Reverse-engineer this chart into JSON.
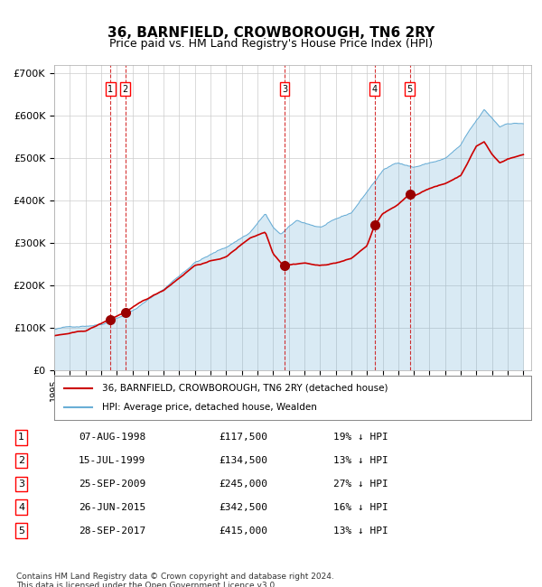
{
  "title": "36, BARNFIELD, CROWBOROUGH, TN6 2RY",
  "subtitle": "Price paid vs. HM Land Registry's House Price Index (HPI)",
  "footer": "Contains HM Land Registry data © Crown copyright and database right 2024.\nThis data is licensed under the Open Government Licence v3.0.",
  "legend_line1": "36, BARNFIELD, CROWBOROUGH, TN6 2RY (detached house)",
  "legend_line2": "HPI: Average price, detached house, Wealden",
  "hpi_color": "#6aaed6",
  "hpi_fill_color": "#ddeeff",
  "price_color": "#cc0000",
  "marker_color": "#990000",
  "vline_color": "#cc0000",
  "background_color": "#ffffff",
  "grid_color": "#cccccc",
  "transactions": [
    {
      "num": 1,
      "date": "07-AUG-1998",
      "year": 1998.6,
      "price": 117500,
      "pct": "19%",
      "dir": "↓"
    },
    {
      "num": 2,
      "date": "15-JUL-1999",
      "year": 1999.54,
      "price": 134500,
      "pct": "13%",
      "dir": "↓"
    },
    {
      "num": 3,
      "date": "25-SEP-2009",
      "year": 2009.73,
      "price": 245000,
      "pct": "27%",
      "dir": "↓"
    },
    {
      "num": 4,
      "date": "26-JUN-2015",
      "year": 2015.49,
      "price": 342500,
      "pct": "16%",
      "dir": "↓"
    },
    {
      "num": 5,
      "date": "28-SEP-2017",
      "year": 2017.74,
      "price": 415000,
      "pct": "13%",
      "dir": "↓"
    }
  ],
  "ylim": [
    0,
    720000
  ],
  "xlim_start": 1995.0,
  "xlim_end": 2025.5,
  "yticks": [
    0,
    100000,
    200000,
    300000,
    400000,
    500000,
    600000,
    700000
  ],
  "ytick_labels": [
    "£0",
    "£100K",
    "£200K",
    "£300K",
    "£400K",
    "£500K",
    "£600K",
    "£700K"
  ]
}
